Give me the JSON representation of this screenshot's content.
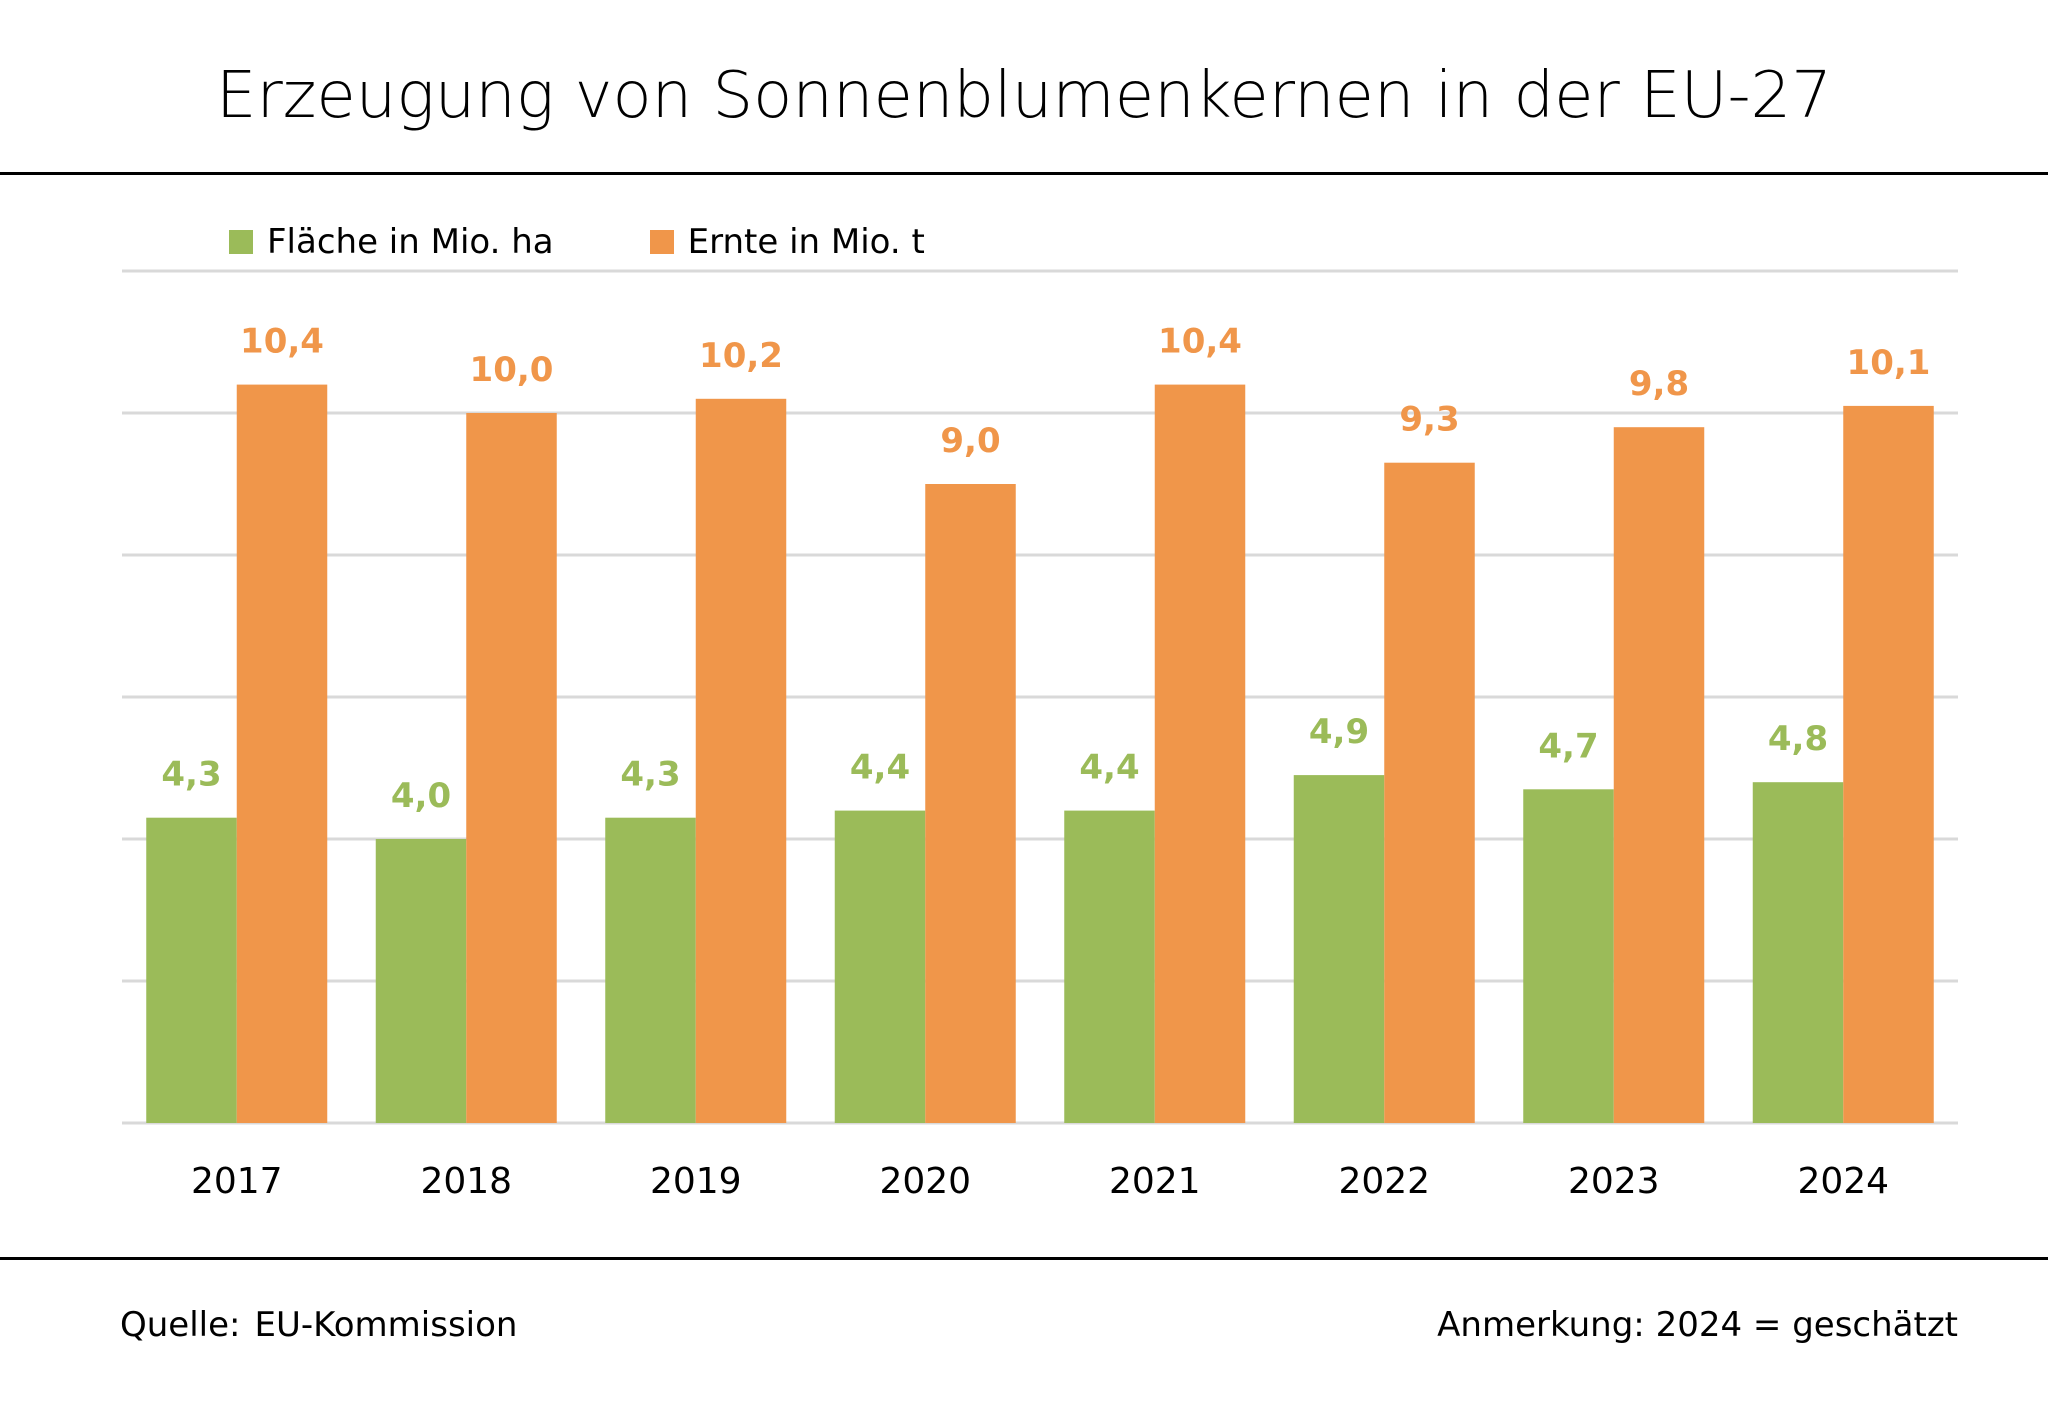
{
  "chart_data": {
    "type": "bar",
    "title": "Erzeugung von Sonnenblumenkernen in der EU-27",
    "categories": [
      "2017",
      "2018",
      "2019",
      "2020",
      "2021",
      "2022",
      "2023",
      "2024"
    ],
    "series": [
      {
        "name": "Fläche in Mio. ha",
        "color": "#9BBB59",
        "values": [
          4.3,
          4.0,
          4.3,
          4.4,
          4.4,
          4.9,
          4.7,
          4.8
        ],
        "labels": [
          "4,3",
          "4,0",
          "4,3",
          "4,4",
          "4,4",
          "4,9",
          "4,7",
          "4,8"
        ]
      },
      {
        "name": "Ernte in Mio. t",
        "color": "#F0964A",
        "values": [
          10.4,
          10.0,
          10.2,
          9.0,
          10.4,
          9.3,
          9.8,
          10.1
        ],
        "labels": [
          "10,4",
          "10,0",
          "10,2",
          "9,0",
          "10,4",
          "9,3",
          "9,8",
          "10,1"
        ]
      }
    ],
    "xlabel": "",
    "ylabel": "",
    "ylim": [
      0,
      12
    ],
    "ytick_step": 2,
    "ytick_labels_visible": false,
    "grid": true,
    "gridline_color": "#D9D9D9",
    "legend_position": "top-left"
  },
  "header": {
    "title": "Erzeugung von Sonnenblumenkernen in der EU-27"
  },
  "legend": {
    "items": [
      {
        "label": "Fläche in Mio. ha",
        "color": "#9BBB59"
      },
      {
        "label": "Ernte in Mio. t",
        "color": "#F0964A"
      }
    ]
  },
  "footer": {
    "source_label": "Quelle:",
    "source_value": "EU-Kommission",
    "note": "Anmerkung: 2024 = geschätzt"
  }
}
